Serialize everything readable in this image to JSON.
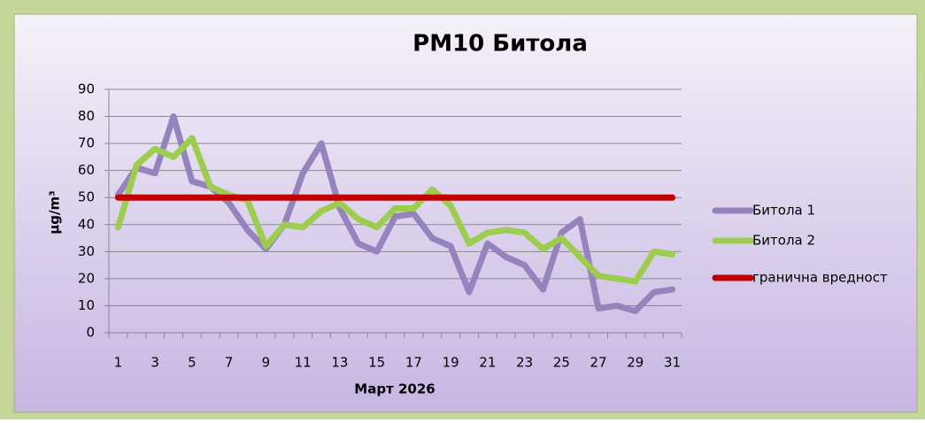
{
  "chart_data": {
    "type": "line",
    "title": "PM10 Битола",
    "x_label": "Март 2026",
    "y_label": "μg/m³",
    "categories": [
      1,
      null,
      3,
      null,
      5,
      null,
      7,
      null,
      9,
      null,
      11,
      null,
      13,
      null,
      15,
      null,
      17,
      null,
      19,
      null,
      21,
      null,
      23,
      null,
      25,
      null,
      27,
      null,
      29,
      null,
      31
    ],
    "series": [
      {
        "name": "Битола 1",
        "color": "#9683bd",
        "values": [
          51,
          61,
          59,
          80,
          56,
          54,
          48,
          38,
          31,
          40,
          59,
          70,
          46,
          33,
          30,
          43,
          44,
          35,
          32,
          15,
          33,
          28,
          25,
          16,
          37,
          42,
          9,
          10,
          8,
          15,
          16
        ]
      },
      {
        "name": "Битола 2",
        "color": "#9ccd4e",
        "values": [
          39,
          62,
          68,
          65,
          72,
          54,
          51,
          49,
          32,
          40,
          39,
          45,
          48,
          42,
          39,
          46,
          46,
          53,
          47,
          33,
          37,
          38,
          37,
          31,
          35,
          28,
          21,
          20,
          19,
          30,
          29
        ]
      },
      {
        "name": "гранична вредност",
        "color": "#c00000",
        "values": [
          50,
          50,
          50,
          50,
          50,
          50,
          50,
          50,
          50,
          50,
          50,
          50,
          50,
          50,
          50,
          50,
          50,
          50,
          50,
          50,
          50,
          50,
          50,
          50,
          50,
          50,
          50,
          50,
          50,
          50,
          50
        ]
      }
    ],
    "ylim": [
      0,
      90
    ],
    "yticks": [
      0,
      10,
      20,
      30,
      40,
      50,
      60,
      70,
      80,
      90
    ],
    "grid": true,
    "legend": "right"
  }
}
